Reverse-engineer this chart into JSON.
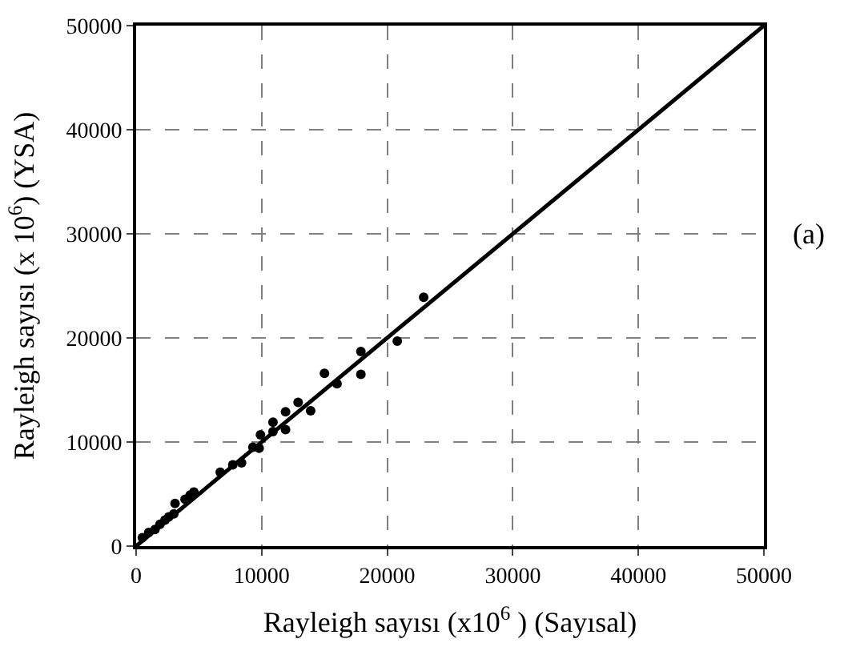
{
  "chart_data": {
    "type": "scatter",
    "xlabel": "Rayleigh sayısı (x10$^{6}$ ) (Sayısal)",
    "ylabel": "Rayleigh sayısı (x 10$^{6}$) (YSA)",
    "annotations": [
      "(a)"
    ],
    "xlim": [
      0,
      50000
    ],
    "ylim": [
      0,
      50000
    ],
    "xticks": [
      0,
      10000,
      20000,
      30000,
      40000,
      50000
    ],
    "yticks": [
      0,
      10000,
      20000,
      30000,
      40000,
      50000
    ],
    "grid": true,
    "legend": false,
    "marker": "circle",
    "series": [
      {
        "color": "#000000",
        "x": [
          500,
          1000,
          1500,
          1900,
          2300,
          2600,
          3000,
          3100,
          3900,
          4300,
          4600,
          6700,
          7700,
          8400,
          9300,
          9800,
          9900,
          10900,
          10900,
          11900,
          11900,
          12900,
          13900,
          15000,
          16000,
          17900,
          17900,
          20800,
          22900
        ],
        "values": [
          800,
          1300,
          1600,
          2100,
          2500,
          2800,
          3100,
          4100,
          4500,
          4900,
          5200,
          7100,
          7800,
          8000,
          9500,
          9400,
          10700,
          11900,
          11000,
          12900,
          11200,
          13800,
          13000,
          16600,
          15600,
          18700,
          16500,
          19700,
          23900
        ]
      },
      {
        "type": "line",
        "color": "#000000",
        "marker": "none",
        "line_style": "solid",
        "x": [
          0,
          50000
        ],
        "values": [
          0,
          50000
        ]
      }
    ]
  }
}
